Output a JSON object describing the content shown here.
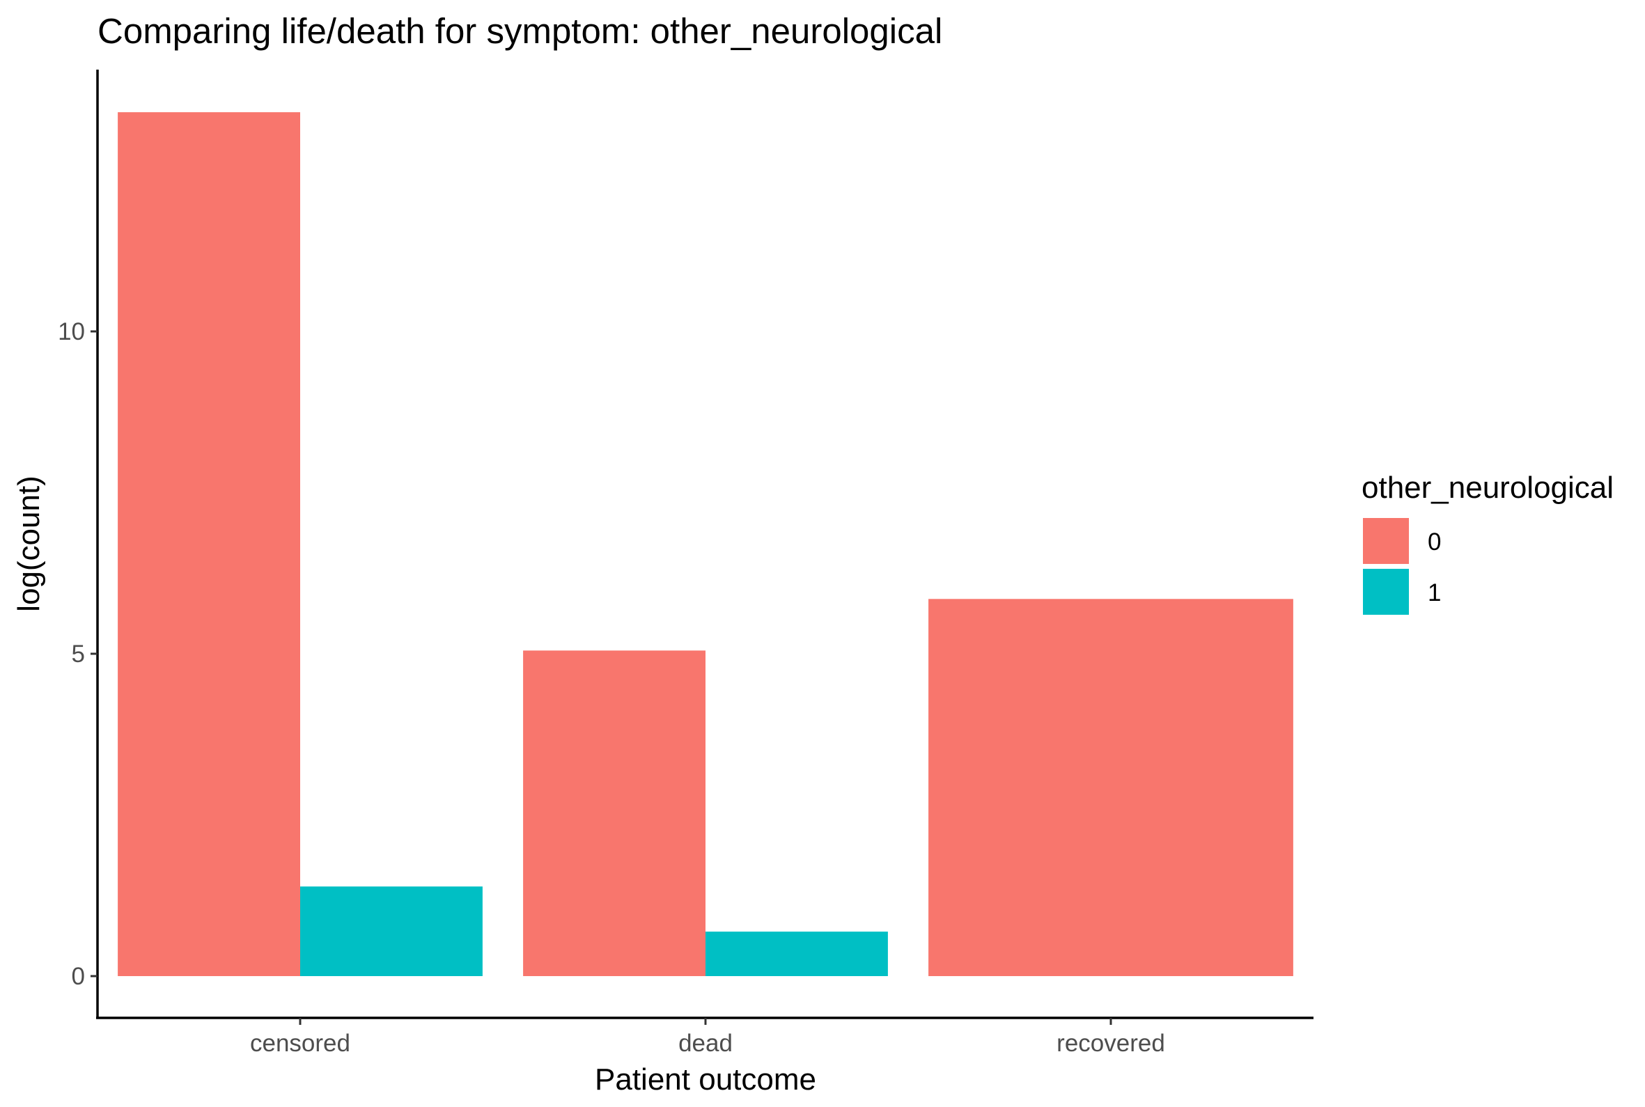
{
  "chart_data": {
    "type": "bar",
    "title": "Comparing life/death for symptom: other_neurological",
    "xlabel": "Patient outcome",
    "ylabel": "log(count)",
    "categories": [
      "censored",
      "dead",
      "recovered"
    ],
    "series": [
      {
        "name": "0",
        "color": "#F8766D",
        "values": [
          13.4,
          5.05,
          5.85
        ]
      },
      {
        "name": "1",
        "color": "#00BFC4",
        "values": [
          1.39,
          0.69,
          null
        ]
      }
    ],
    "y_ticks": [
      0,
      5,
      10
    ],
    "ylim": [
      -0.65,
      14.3
    ],
    "legend": {
      "title": "other_neurological",
      "placement": "right"
    },
    "grid": false,
    "bar_layout": "dodge"
  }
}
